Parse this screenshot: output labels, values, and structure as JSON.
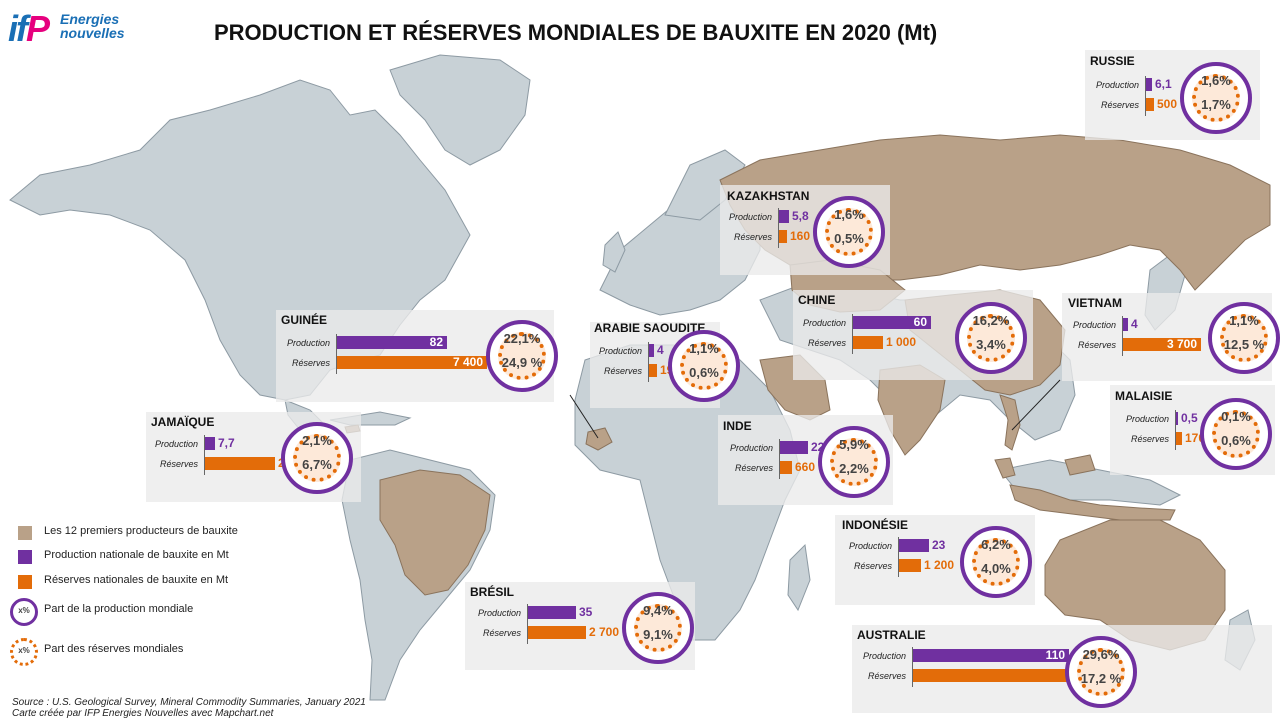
{
  "title": "PRODUCTION ET RÉSERVES MONDIALES DE BAUXITE EN 2020 (Mt)",
  "logo": {
    "mark": "ifP",
    "line1": "Energies",
    "line2": "nouvelles"
  },
  "colors": {
    "production": "#7030a0",
    "reserves": "#e36c09",
    "producer_country": "#b9a188",
    "land": "#c8d1d6",
    "ocean": "#ffffff"
  },
  "row_labels": {
    "production": "Production",
    "reserves": "Réserves"
  },
  "countries": [
    {
      "id": "russie",
      "name": "RUSSIE",
      "production": "6,1",
      "reserves": "500",
      "prod_share": "1,6%",
      "res_share": "1,7%",
      "prod_value": 6.1,
      "res_value": 500
    },
    {
      "id": "kazakhstan",
      "name": "KAZAKHSTAN",
      "production": "5,8",
      "reserves": "160",
      "prod_share": "1,6%",
      "res_share": "0,5%",
      "prod_value": 5.8,
      "res_value": 160
    },
    {
      "id": "chine",
      "name": "CHINE",
      "production": "60",
      "reserves": "1 000",
      "prod_share": "16,2%",
      "res_share": "3,4%",
      "prod_value": 60,
      "res_value": 1000
    },
    {
      "id": "vietnam",
      "name": "VIETNAM",
      "production": "4",
      "reserves": "3 700",
      "prod_share": "1,1%",
      "res_share": "12,5 %",
      "prod_value": 4,
      "res_value": 3700
    },
    {
      "id": "guinee",
      "name": "GUINÉE",
      "production": "82",
      "reserves": "7 400",
      "prod_share": "22,1%",
      "res_share": "24,9 %",
      "prod_value": 82,
      "res_value": 7400
    },
    {
      "id": "arabie",
      "name": "ARABIE SAOUDITE",
      "production": "4",
      "reserves": "190",
      "prod_share": "1,1%",
      "res_share": "0,6%",
      "prod_value": 4,
      "res_value": 190
    },
    {
      "id": "malaisie",
      "name": "MALAISIE",
      "production": "0,5",
      "reserves": "170",
      "prod_share": "0,1%",
      "res_share": "0,6%",
      "prod_value": 0.5,
      "res_value": 170
    },
    {
      "id": "jamaique",
      "name": "JAMAÏQUE",
      "production": "7,7",
      "reserves": "2 000",
      "prod_share": "2,1%",
      "res_share": "6,7%",
      "prod_value": 7.7,
      "res_value": 2000
    },
    {
      "id": "inde",
      "name": "INDE",
      "production": "22",
      "reserves": "660",
      "prod_share": "5,9%",
      "res_share": "2,2%",
      "prod_value": 22,
      "res_value": 660
    },
    {
      "id": "indonesie",
      "name": "INDONÉSIE",
      "production": "23",
      "reserves": "1 200",
      "prod_share": "6,2%",
      "res_share": "4,0%",
      "prod_value": 23,
      "res_value": 1200
    },
    {
      "id": "bresil",
      "name": "BRÉSIL",
      "production": "35",
      "reserves": "2 700",
      "prod_share": "9,4%",
      "res_share": "9,1%",
      "prod_value": 35,
      "res_value": 2700
    },
    {
      "id": "australie",
      "name": "AUSTRALIE",
      "production": "110",
      "reserves": "5 100",
      "prod_share": "29,6%",
      "res_share": "17,2 %",
      "prod_value": 110,
      "res_value": 5100
    }
  ],
  "legend": {
    "producers": "Les 12 premiers producteurs de bauxite",
    "production": "Production nationale de bauxite en Mt",
    "reserves": "Réserves nationales de bauxite en Mt",
    "prod_share": "Part de la production mondiale",
    "res_share": "Part des réserves mondiales",
    "symbol": "x%"
  },
  "source": {
    "line1": "Source : U.S. Geological Survey, Mineral Commodity Summaries, January 2021",
    "line2": "Carte créée par IFP Energies Nouvelles avec Mapchart.net"
  }
}
